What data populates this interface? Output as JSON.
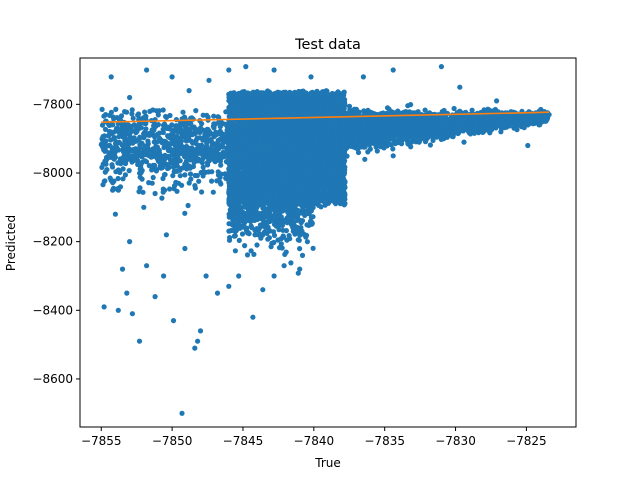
{
  "chart_data": {
    "type": "scatter",
    "title": "Test data",
    "xlabel": "True",
    "ylabel": "Predicted",
    "xlim": [
      -7856.5,
      -7821.5
    ],
    "ylim": [
      -8740,
      -7665
    ],
    "x_ticks": [
      -7855,
      -7850,
      -7845,
      -7840,
      -7835,
      -7830,
      -7825
    ],
    "x_tick_labels": [
      "−7855",
      "−7850",
      "−7845",
      "−7840",
      "−7835",
      "−7830",
      "−7825"
    ],
    "y_ticks": [
      -8600,
      -8400,
      -8200,
      -8000,
      -7800
    ],
    "y_tick_labels": [
      "−8600",
      "−8400",
      "−8200",
      "−8000",
      "−7800"
    ],
    "grid": false,
    "series": [
      {
        "type": "scatter",
        "color": "#1f77b4",
        "points": [
          [
            -7854.7,
            -7850
          ],
          [
            -7854.4,
            -7920
          ],
          [
            -7854.6,
            -7990
          ],
          [
            -7854.2,
            -8050
          ],
          [
            -7854.8,
            -8390
          ],
          [
            -7853.8,
            -8400
          ],
          [
            -7854.0,
            -8120
          ],
          [
            -7853.5,
            -8280
          ],
          [
            -7853.2,
            -8350
          ],
          [
            -7852.8,
            -8410
          ],
          [
            -7852.3,
            -8490
          ],
          [
            -7851.8,
            -8270
          ],
          [
            -7851.2,
            -8360
          ],
          [
            -7850.6,
            -8300
          ],
          [
            -7849.9,
            -8430
          ],
          [
            -7849.3,
            -8700
          ],
          [
            -7848.2,
            -8490
          ],
          [
            -7848.0,
            -8460
          ],
          [
            -7848.4,
            -8510
          ],
          [
            -7847.6,
            -8300
          ],
          [
            -7846.8,
            -8350
          ],
          [
            -7846.0,
            -8330
          ],
          [
            -7845.3,
            -8300
          ],
          [
            -7844.3,
            -8420
          ],
          [
            -7843.6,
            -8340
          ],
          [
            -7842.8,
            -8300
          ],
          [
            -7842.1,
            -8270
          ],
          [
            -7841.0,
            -8280
          ],
          [
            -7840.8,
            -8240
          ],
          [
            -7849.1,
            -8220
          ],
          [
            -7850.4,
            -8180
          ],
          [
            -7852.0,
            -8100
          ],
          [
            -7853.0,
            -8200
          ],
          [
            -7854.3,
            -7720
          ],
          [
            -7853.0,
            -7780
          ],
          [
            -7851.8,
            -7700
          ],
          [
            -7850.0,
            -7720
          ],
          [
            -7848.8,
            -7760
          ],
          [
            -7847.4,
            -7730
          ],
          [
            -7846.0,
            -7700
          ],
          [
            -7844.8,
            -7690
          ],
          [
            -7842.8,
            -7700
          ],
          [
            -7840.2,
            -7720
          ],
          [
            -7836.5,
            -7720
          ],
          [
            -7834.4,
            -7700
          ],
          [
            -7831.0,
            -7690
          ],
          [
            -7829.7,
            -7750
          ],
          [
            -7827.1,
            -7790
          ],
          [
            -7826.2,
            -7830
          ],
          [
            -7824.9,
            -7920
          ],
          [
            -7823.4,
            -7830
          ],
          [
            -7826.8,
            -7880
          ],
          [
            -7828.0,
            -7860
          ],
          [
            -7829.4,
            -7910
          ],
          [
            -7830.6,
            -7880
          ],
          [
            -7832.6,
            -7900
          ],
          [
            -7834.4,
            -7950
          ],
          [
            -7836.4,
            -7960
          ],
          [
            -7838.0,
            -8080
          ]
        ],
        "cloud": {
          "x_range": [
            -7855,
            -7823.5
          ],
          "band_center": -7860,
          "band_slope": 1.3
        }
      },
      {
        "type": "line",
        "color": "#ff7f0e",
        "points": [
          [
            -7855,
            -7852
          ],
          [
            -7823.4,
            -7823
          ]
        ]
      }
    ]
  }
}
